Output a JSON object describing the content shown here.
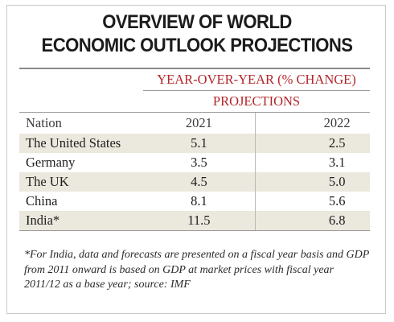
{
  "title": {
    "line1": "OVERVIEW OF WORLD",
    "line2": "ECONOMIC OUTLOOK PROJECTIONS"
  },
  "table": {
    "group_header": "YEAR-OVER-YEAR (% CHANGE)",
    "sub_header": "PROJECTIONS",
    "columns": [
      "Nation",
      "2021",
      "2022"
    ],
    "rows": [
      [
        "The United States",
        "5.1",
        "2.5"
      ],
      [
        "Germany",
        "3.5",
        "3.1"
      ],
      [
        "The UK",
        "4.5",
        "5.0"
      ],
      [
        "China",
        "8.1",
        "5.6"
      ],
      [
        "India*",
        "11.5",
        "6.8"
      ]
    ]
  },
  "footnote": "*For India, data and forecasts are presented on a fiscal year basis and GDP from 2011 onward is based on GDP at market prices with fiscal year 2011/12 as a base year; source: IMF",
  "colors": {
    "accent_red": "#b3262b",
    "row_shade": "#ebe8de"
  }
}
